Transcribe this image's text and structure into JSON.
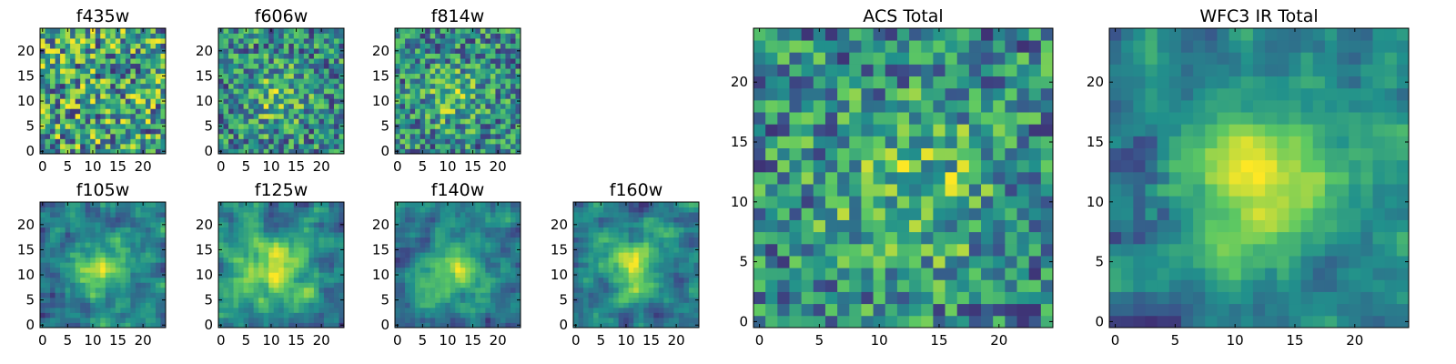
{
  "figure": {
    "panels": [
      {
        "id": "f435w",
        "title": "f435w",
        "xticks": [
          0,
          5,
          10,
          15,
          20
        ],
        "yticks": [
          0,
          5,
          10,
          15,
          20
        ]
      },
      {
        "id": "f606w",
        "title": "f606w",
        "xticks": [
          0,
          5,
          10,
          15,
          20
        ],
        "yticks": [
          0,
          5,
          10,
          15,
          20
        ]
      },
      {
        "id": "f814w",
        "title": "f814w",
        "xticks": [
          0,
          5,
          10,
          15,
          20
        ],
        "yticks": [
          0,
          5,
          10,
          15,
          20
        ]
      },
      {
        "id": "f105w",
        "title": "f105w",
        "xticks": [
          0,
          5,
          10,
          15,
          20
        ],
        "yticks": [
          0,
          5,
          10,
          15,
          20
        ]
      },
      {
        "id": "f125w",
        "title": "f125w",
        "xticks": [
          0,
          5,
          10,
          15,
          20
        ],
        "yticks": [
          0,
          5,
          10,
          15,
          20
        ]
      },
      {
        "id": "f140w",
        "title": "f140w",
        "xticks": [
          0,
          5,
          10,
          15,
          20
        ],
        "yticks": [
          0,
          5,
          10,
          15,
          20
        ]
      },
      {
        "id": "f160w",
        "title": "f160w",
        "xticks": [
          0,
          5,
          10,
          15,
          20
        ],
        "yticks": [
          0,
          5,
          10,
          15,
          20
        ]
      },
      {
        "id": "acs_total",
        "title": "ACS Total",
        "xticks": [
          0,
          5,
          10,
          15,
          20
        ],
        "yticks": [
          0,
          5,
          10,
          15,
          20
        ]
      },
      {
        "id": "wfc3_ir_total",
        "title": "WFC3 IR Total",
        "xticks": [
          0,
          5,
          10,
          15,
          20
        ],
        "yticks": [
          0,
          5,
          10,
          15,
          20
        ]
      }
    ],
    "colormap": [
      "#440154",
      "#3b528b",
      "#21918c",
      "#5ec962",
      "#fde725"
    ]
  },
  "chart_data": [
    {
      "type": "heatmap",
      "title": "f435w",
      "xlim": [
        0,
        24
      ],
      "ylim": [
        0,
        24
      ],
      "grid_size": 25,
      "colormap": "viridis",
      "appearance": "noisy, no central concentration",
      "xlabel": "",
      "ylabel": ""
    },
    {
      "type": "heatmap",
      "title": "f606w",
      "xlim": [
        0,
        24
      ],
      "ylim": [
        0,
        24
      ],
      "grid_size": 25,
      "colormap": "viridis",
      "appearance": "noisy with faint central peak near (11, 11)",
      "xlabel": "",
      "ylabel": ""
    },
    {
      "type": "heatmap",
      "title": "f814w",
      "xlim": [
        0,
        24
      ],
      "ylim": [
        0,
        24
      ],
      "grid_size": 25,
      "colormap": "viridis",
      "appearance": "noisy with faint central peak near (11, 11)",
      "xlabel": "",
      "ylabel": ""
    },
    {
      "type": "heatmap",
      "title": "f105w",
      "xlim": [
        0,
        24
      ],
      "ylim": [
        0,
        24
      ],
      "grid_size": 25,
      "colormap": "viridis",
      "appearance": "smoothed noise with central peak near (12, 11)",
      "xlabel": "",
      "ylabel": ""
    },
    {
      "type": "heatmap",
      "title": "f125w",
      "xlim": [
        0,
        24
      ],
      "ylim": [
        0,
        24
      ],
      "grid_size": 25,
      "colormap": "viridis",
      "appearance": "smoothed noise with central peak near (11, 11)",
      "xlabel": "",
      "ylabel": ""
    },
    {
      "type": "heatmap",
      "title": "f140w",
      "xlim": [
        0,
        24
      ],
      "ylim": [
        0,
        24
      ],
      "grid_size": 25,
      "colormap": "viridis",
      "appearance": "smoothed noise with central peak near (11, 11)",
      "xlabel": "",
      "ylabel": ""
    },
    {
      "type": "heatmap",
      "title": "f160w",
      "xlim": [
        0,
        24
      ],
      "ylim": [
        0,
        24
      ],
      "grid_size": 25,
      "colormap": "viridis",
      "appearance": "smoothed noise with central peak near (12, 12)",
      "xlabel": "",
      "ylabel": ""
    },
    {
      "type": "heatmap",
      "title": "ACS Total",
      "xlim": [
        0,
        24
      ],
      "ylim": [
        0,
        24
      ],
      "grid_size": 25,
      "colormap": "viridis",
      "appearance": "noisy with bright center near (13, 11)",
      "xlabel": "",
      "ylabel": ""
    },
    {
      "type": "heatmap",
      "title": "WFC3 IR Total",
      "xlim": [
        0,
        24
      ],
      "ylim": [
        0,
        24
      ],
      "grid_size": 25,
      "colormap": "viridis",
      "appearance": "smooth with strong central peak near (12, 12), dark spots at left",
      "xlabel": "",
      "ylabel": ""
    }
  ]
}
